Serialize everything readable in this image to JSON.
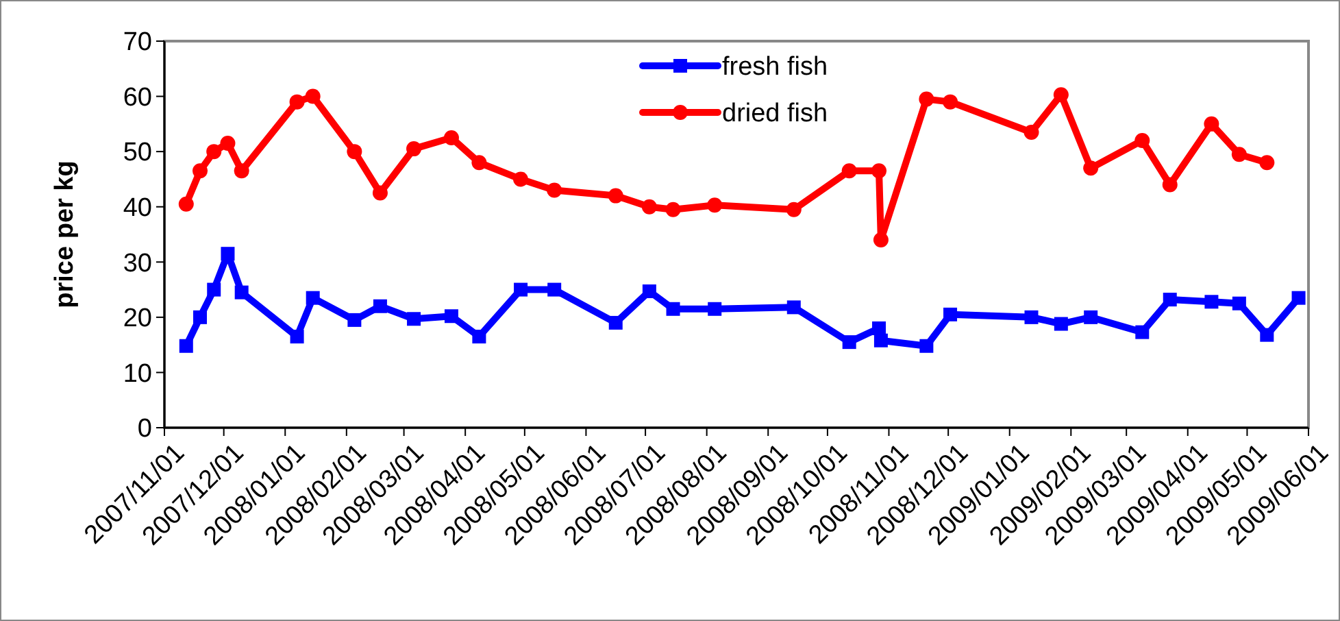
{
  "chart_data": {
    "type": "line",
    "ylabel": "price per kg",
    "legend": "top",
    "grid": false,
    "x": [
      "2007-11-12",
      "2007-11-19",
      "2007-11-26",
      "2007-12-03",
      "2007-12-10",
      "2008-01-07",
      "2008-01-15",
      "2008-02-05",
      "2008-02-18",
      "2008-03-06",
      "2008-03-25",
      "2008-04-08",
      "2008-04-29",
      "2008-05-16",
      "2008-06-16",
      "2008-07-03",
      "2008-07-15",
      "2008-08-05",
      "2008-09-14",
      "2008-10-12",
      "2008-10-27",
      "2008-10-28",
      "2008-11-20",
      "2008-12-02",
      "2009-01-12",
      "2009-01-27",
      "2009-02-11",
      "2009-03-09",
      "2009-03-23",
      "2009-04-13",
      "2009-04-27",
      "2009-05-11",
      "2009-05-27"
    ],
    "series": [
      {
        "name": "fresh fish",
        "color": "#0000ff",
        "marker": "square",
        "values": [
          14.8,
          20,
          25,
          31.5,
          24.5,
          16.5,
          23.5,
          19.5,
          22,
          19.7,
          20.2,
          16.5,
          25,
          25,
          19,
          24.7,
          21.5,
          21.5,
          21.8,
          15.5,
          18,
          15.8,
          14.8,
          20.5,
          20,
          18.8,
          20,
          17.3,
          23.2,
          22.8,
          22.5,
          16.8,
          23.5
        ]
      },
      {
        "name": "dried fish",
        "color": "#ff0000",
        "marker": "circle",
        "values": [
          40.5,
          46.5,
          50,
          51.5,
          46.5,
          59,
          60,
          50,
          42.5,
          50.5,
          52.5,
          48,
          45,
          43,
          42,
          40,
          39.5,
          40.3,
          39.5,
          46.5,
          46.5,
          34,
          59.5,
          59,
          53.5,
          60.3,
          47,
          52,
          44,
          55,
          49.5,
          48,
          null
        ]
      }
    ],
    "xlim": [
      "2007-11-01",
      "2009-06-01"
    ],
    "xticks": [
      {
        "value": "2007-11-01",
        "label": "2007/11/01"
      },
      {
        "value": "2007-12-01",
        "label": "2007/12/01"
      },
      {
        "value": "2008-01-01",
        "label": "2008/01/01"
      },
      {
        "value": "2008-02-01",
        "label": "2008/02/01"
      },
      {
        "value": "2008-03-01",
        "label": "2008/03/01"
      },
      {
        "value": "2008-04-01",
        "label": "2008/04/01"
      },
      {
        "value": "2008-05-01",
        "label": "2008/05/01"
      },
      {
        "value": "2008-06-01",
        "label": "2008/06/01"
      },
      {
        "value": "2008-07-01",
        "label": "2008/07/01"
      },
      {
        "value": "2008-08-01",
        "label": "2008/08/01"
      },
      {
        "value": "2008-09-01",
        "label": "2008/09/01"
      },
      {
        "value": "2008-10-01",
        "label": "2008/10/01"
      },
      {
        "value": "2008-11-01",
        "label": "2008/11/01"
      },
      {
        "value": "2008-12-01",
        "label": "2008/12/01"
      },
      {
        "value": "2009-01-01",
        "label": "2009/01/01"
      },
      {
        "value": "2009-02-01",
        "label": "2009/02/01"
      },
      {
        "value": "2009-03-01",
        "label": "2009/03/01"
      },
      {
        "value": "2009-04-01",
        "label": "2009/04/01"
      },
      {
        "value": "2009-05-01",
        "label": "2009/05/01"
      },
      {
        "value": "2009-06-01",
        "label": "2009/06/01"
      }
    ],
    "ylim": [
      0,
      70
    ],
    "yticks": [
      0,
      10,
      20,
      30,
      40,
      50,
      60,
      70
    ]
  }
}
